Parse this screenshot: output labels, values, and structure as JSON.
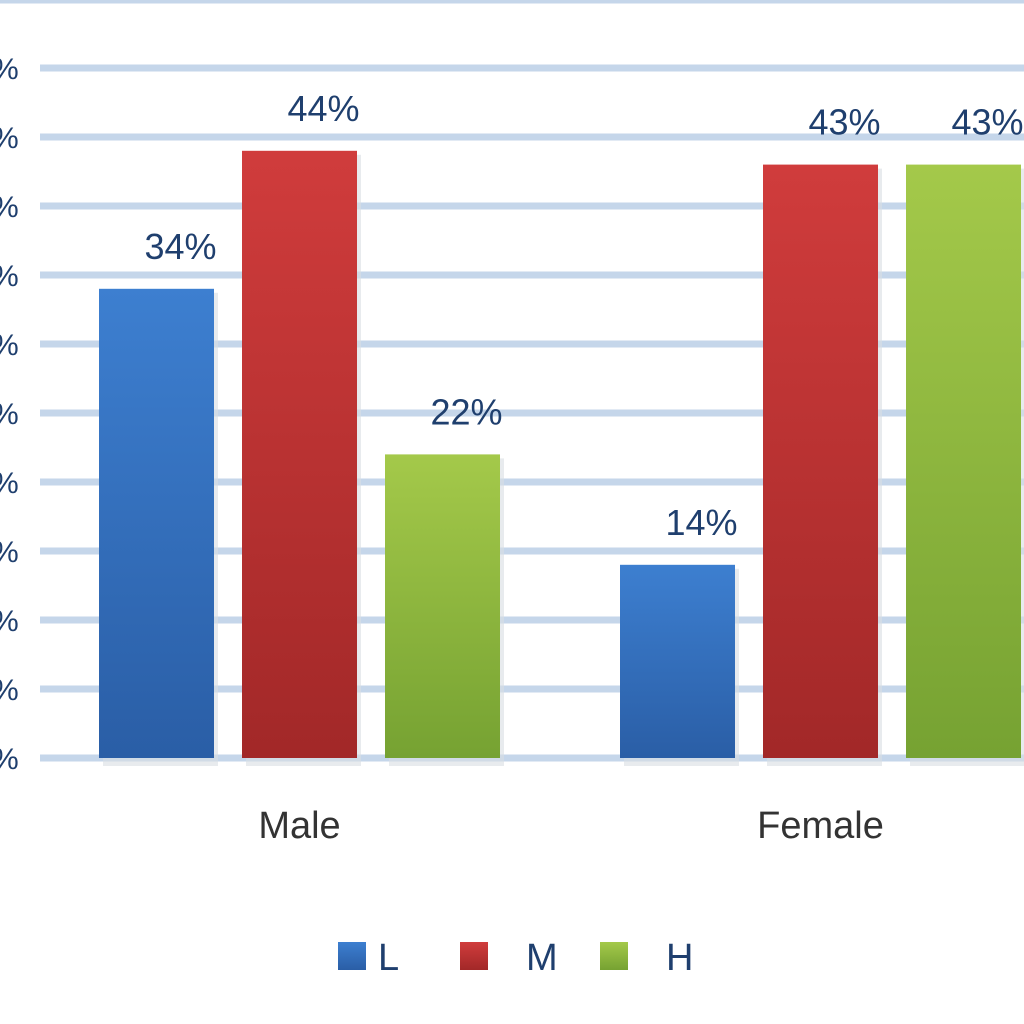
{
  "chart_data": {
    "type": "bar",
    "title": "",
    "xlabel": "",
    "ylabel": "",
    "categories": [
      "Male",
      "Female"
    ],
    "series": [
      {
        "name": "L",
        "values": [
          34,
          14
        ],
        "labels": [
          "34%",
          "14%"
        ]
      },
      {
        "name": "M",
        "values": [
          44,
          43
        ],
        "labels": [
          "44%",
          "43%"
        ]
      },
      {
        "name": "H",
        "values": [
          22,
          43
        ],
        "labels": [
          "22%",
          "43%"
        ]
      }
    ],
    "ylim": [
      0,
      50
    ],
    "ytick_step": 5,
    "ytick_text": "%",
    "grid": true,
    "legend_position": "bottom",
    "colors": {
      "L": [
        "#3d7fd0",
        "#2a5ea6"
      ],
      "M": [
        "#d03c3c",
        "#a22828"
      ],
      "H": [
        "#a4c94a",
        "#76a232"
      ],
      "grid": "#c5d6ea",
      "text": "#1f3f6e"
    }
  }
}
